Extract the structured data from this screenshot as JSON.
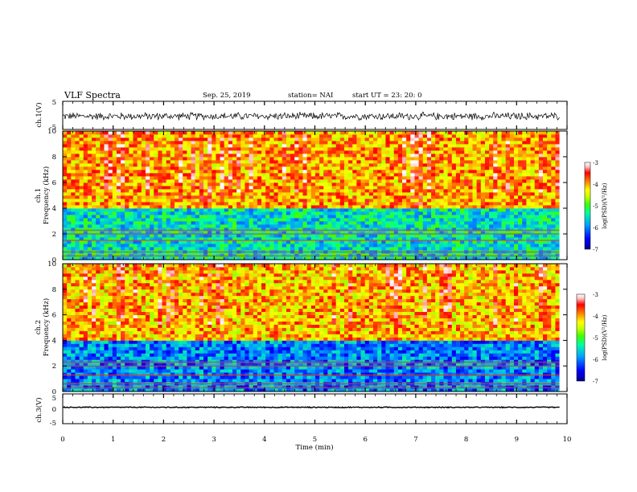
{
  "header": {
    "title": "VLF Spectra",
    "date": "Sep. 25, 2019",
    "station": "station= NAI",
    "start": "start  UT  =   23: 20: 0"
  },
  "colorbar_label": "log(PSD)(V²/Hz)",
  "colorbar_ticks": [
    "-3",
    "-4",
    "-5",
    "-6",
    "-7"
  ],
  "colors": {
    "colormap": [
      "#00008b",
      "#0000ff",
      "#00a0ff",
      "#00ffa0",
      "#40ff00",
      "#c0ff00",
      "#ffff00",
      "#ff8000",
      "#ff0000",
      "#ffc0c0",
      "#ffffff"
    ]
  },
  "chart_data": [
    {
      "type": "line",
      "name": "ch1-waveform",
      "ylabel": "ch.1(V)",
      "ylim": [
        -5,
        5
      ],
      "yticks": [
        "5",
        "-5"
      ],
      "x_range": [
        0,
        9.85
      ],
      "level": -0.3,
      "noise_amplitude": 1.6
    },
    {
      "type": "heatmap",
      "name": "ch1-spectrogram",
      "ylabel": "ch.1\nFrequency (kHz)",
      "ylim": [
        0,
        10
      ],
      "yticks": [
        "0",
        "2",
        "4",
        "6",
        "8",
        "10"
      ],
      "x_range": [
        0,
        9.85
      ],
      "zlim": [
        -7,
        -3
      ],
      "high_band_log_psd": -4.0,
      "low_band_log_psd": -5.5,
      "band_edge_kHz": 3.8,
      "hum_lines_kHz": [
        0.3,
        0.6,
        1.5,
        2.0,
        2.3
      ]
    },
    {
      "type": "heatmap",
      "name": "ch2-spectrogram",
      "ylabel": "ch.2\nFrequency (kHz)",
      "ylim": [
        0,
        10
      ],
      "yticks": [
        "0",
        "2",
        "4",
        "6",
        "8",
        "10"
      ],
      "x_range": [
        0,
        9.85
      ],
      "zlim": [
        -7,
        -3
      ],
      "high_band_log_psd": -4.1,
      "low_band_log_psd": -6.0,
      "band_edge_kHz": 4.0,
      "hum_lines_kHz": [
        0.3,
        0.6,
        1.3,
        2.0,
        2.3
      ]
    },
    {
      "type": "line",
      "name": "ch3-waveform",
      "ylabel": "ch.3(V)",
      "ylim": [
        -5,
        5
      ],
      "yticks": [
        "5",
        "0",
        "-5"
      ],
      "x_range": [
        0,
        9.85
      ],
      "level": 0.5,
      "noise_amplitude": 0.2
    }
  ],
  "xaxis": {
    "label": "Time  (min)",
    "ticks": [
      "0",
      "1",
      "2",
      "3",
      "4",
      "5",
      "6",
      "7",
      "8",
      "9",
      "10"
    ],
    "xlim": [
      0,
      10
    ]
  }
}
